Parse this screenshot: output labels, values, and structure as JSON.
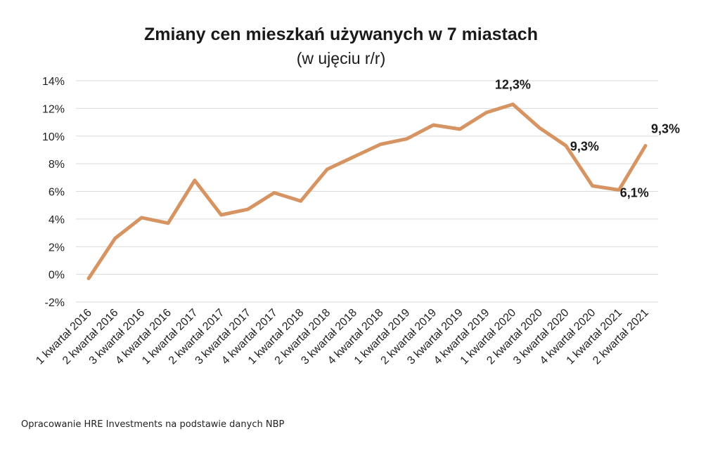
{
  "source_note": "Opracowanie HRE Investments na podstawie danych NBP",
  "chart_data": {
    "type": "line",
    "title": "Zmiany cen mieszkań używanych w 7 miastach",
    "subtitle": "(w ujęciu r/r)",
    "xlabel": "",
    "ylabel": "",
    "ylim": [
      -2,
      14
    ],
    "yticks": [
      -2,
      0,
      2,
      4,
      6,
      8,
      10,
      12,
      14
    ],
    "ytick_labels": [
      "-2%",
      "0%",
      "2%",
      "4%",
      "6%",
      "8%",
      "10%",
      "12%",
      "14%"
    ],
    "grid": true,
    "line_color": "#d79463",
    "categories": [
      "1 kwartał 2016",
      "2 kwartał 2016",
      "3 kwartał 2016",
      "4 kwartał 2016",
      "1 kwartał 2017",
      "2 kwartał 2017",
      "3 kwartał 2017",
      "4 kwartał 2017",
      "1 kwartał 2018",
      "2 kwartał 2018",
      "3 kwartał 2018",
      "4 kwartał 2018",
      "1 kwartał 2019",
      "2 kwartał 2019",
      "3 kwartał 2019",
      "4 kwartał 2019",
      "1 kwartał 2020",
      "2 kwartał 2020",
      "3 kwartał 2020",
      "4 kwartał 2020",
      "1 kwartał 2021",
      "2 kwartał 2021"
    ],
    "series": [
      {
        "values": [
          -0.3,
          2.6,
          4.1,
          3.7,
          6.8,
          4.3,
          4.7,
          5.9,
          5.3,
          7.6,
          8.5,
          9.4,
          9.8,
          10.8,
          10.5,
          11.7,
          12.3,
          10.6,
          9.3,
          6.4,
          6.1,
          9.3
        ]
      }
    ],
    "annotations": [
      {
        "index": 16,
        "label": "12,3%"
      },
      {
        "index": 18,
        "label": "9,3%"
      },
      {
        "index": 20,
        "label": "6,1%"
      },
      {
        "index": 21,
        "label": "9,3%"
      }
    ]
  }
}
